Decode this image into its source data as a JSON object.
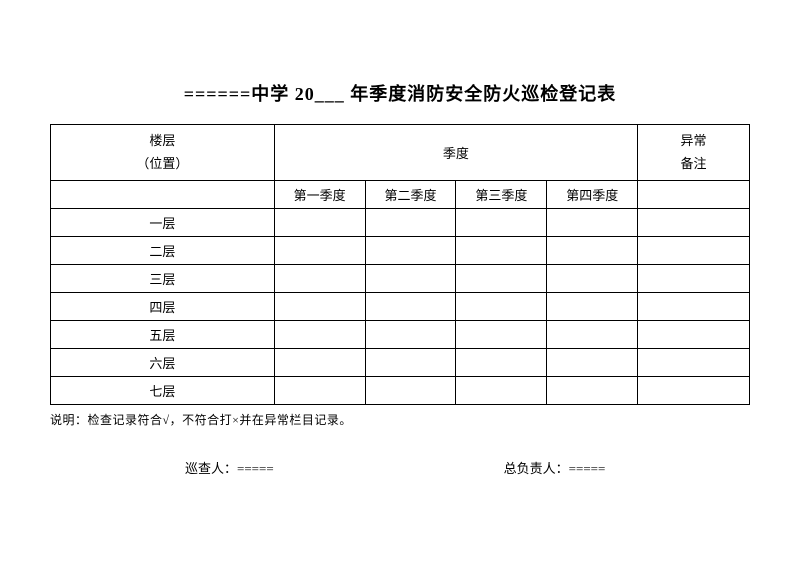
{
  "title": "======中学 20___  年季度消防安全防火巡检登记表",
  "header": {
    "floor_line1": "楼层",
    "floor_line2": "（位置）",
    "quarter": "季度",
    "remark_line1": "异常",
    "remark_line2": "备注",
    "q1": "第一季度",
    "q2": "第二季度",
    "q3": "第三季度",
    "q4": "第四季度"
  },
  "rows": {
    "f1": "一层",
    "f2": "二层",
    "f3": "三层",
    "f4": "四层",
    "f5": "五层",
    "f6": "六层",
    "f7": "七层"
  },
  "note": "说明：检查记录符合√，不符合打×并在异常栏目记录。",
  "signatures": {
    "inspector": "巡查人：=====",
    "responsible": "总负责人：====="
  }
}
